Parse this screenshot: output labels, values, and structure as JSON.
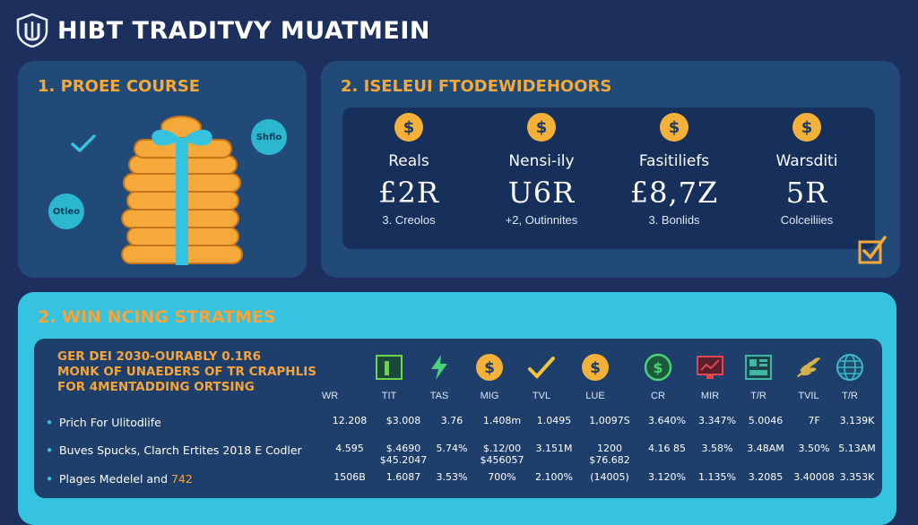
{
  "app": {
    "title": "HIBT TRADITVY MUATMEIN"
  },
  "panel1": {
    "title": "1. PROEE COURSE",
    "badge_a": "Shfio",
    "badge_b": "Otleo"
  },
  "panel2": {
    "title": "2. ISELEUI FTODEWIDEHOORS",
    "stats": [
      {
        "label": "Reals",
        "value": "£2R",
        "sub": "3. Creolos"
      },
      {
        "label": "Nensi-ily",
        "value": "U6R",
        "sub": "+2, Outinnites"
      },
      {
        "label": "Fasitiliefs",
        "value": "£8,7Z",
        "sub": "3. Bonlids"
      },
      {
        "label": "Warsditi",
        "value": "5R",
        "sub": "Colceiliies"
      }
    ]
  },
  "panel3": {
    "title": "2. WIN NCING STRATMES",
    "heading_lines": [
      "GER DEI 2030-OURABLY 0.1R6",
      "MONK OF UNAEDERS OF TR CRAPHLIS",
      "FOR 4MENTADDING ORTSING"
    ],
    "columns": [
      "WR",
      "TIT",
      "TAS",
      "MIG",
      "TVL",
      "LUE",
      "CR",
      "MIR",
      "T/R",
      "TVIL",
      "T/R"
    ],
    "column_icons": [
      "chart-icon",
      "lightning-icon",
      "dollar-coin-icon",
      "check-icon",
      "dollar-coin-icon",
      "dollar-circle-icon",
      "monitor-chart-icon",
      "dashboard-icon",
      "wheat-icon",
      "globe-icon"
    ],
    "rows": [
      {
        "name": "Prich For Ulitodlife",
        "name_accent": "",
        "cells": [
          "12.208",
          "$3.008",
          "3.76",
          "1.408m",
          "1.0495",
          "1,0097S",
          "3.640%",
          "3.347%",
          "5.0046",
          "7F",
          "3.139K"
        ],
        "cells_sub": [
          "",
          "",
          "",
          "",
          "",
          "",
          "",
          "",
          "",
          "",
          ""
        ]
      },
      {
        "name": "Buves Spucks, Clarch Ertites 2018 E Codler",
        "name_accent": "",
        "cells": [
          "4.595",
          "$.4690",
          "5.74%",
          "$.12/00",
          "3.151M",
          "1200",
          "4.16 85",
          "3.58%",
          "3.48AM",
          "3.50%",
          "5.13AM"
        ],
        "cells_sub": [
          "",
          "$45.2047",
          "",
          "$456057",
          "",
          "$76.682",
          "",
          "",
          "",
          "",
          ""
        ]
      },
      {
        "name": "Plages Medelel and ",
        "name_accent": "742",
        "cells": [
          "1506B",
          "1.6087",
          "3.53%",
          "700%",
          "2.100%",
          "(14005)",
          "3.120%",
          "1.135%",
          "3.2085",
          "3.40008",
          "3.353K"
        ],
        "cells_sub": [
          "",
          "",
          "",
          "",
          "",
          "",
          "",
          "",
          "",
          "",
          ""
        ]
      }
    ]
  },
  "colors": {
    "accent": "#f5a53a",
    "panel": "#214a78",
    "cyan": "#36c3df",
    "bg": "#1d2f5c"
  }
}
